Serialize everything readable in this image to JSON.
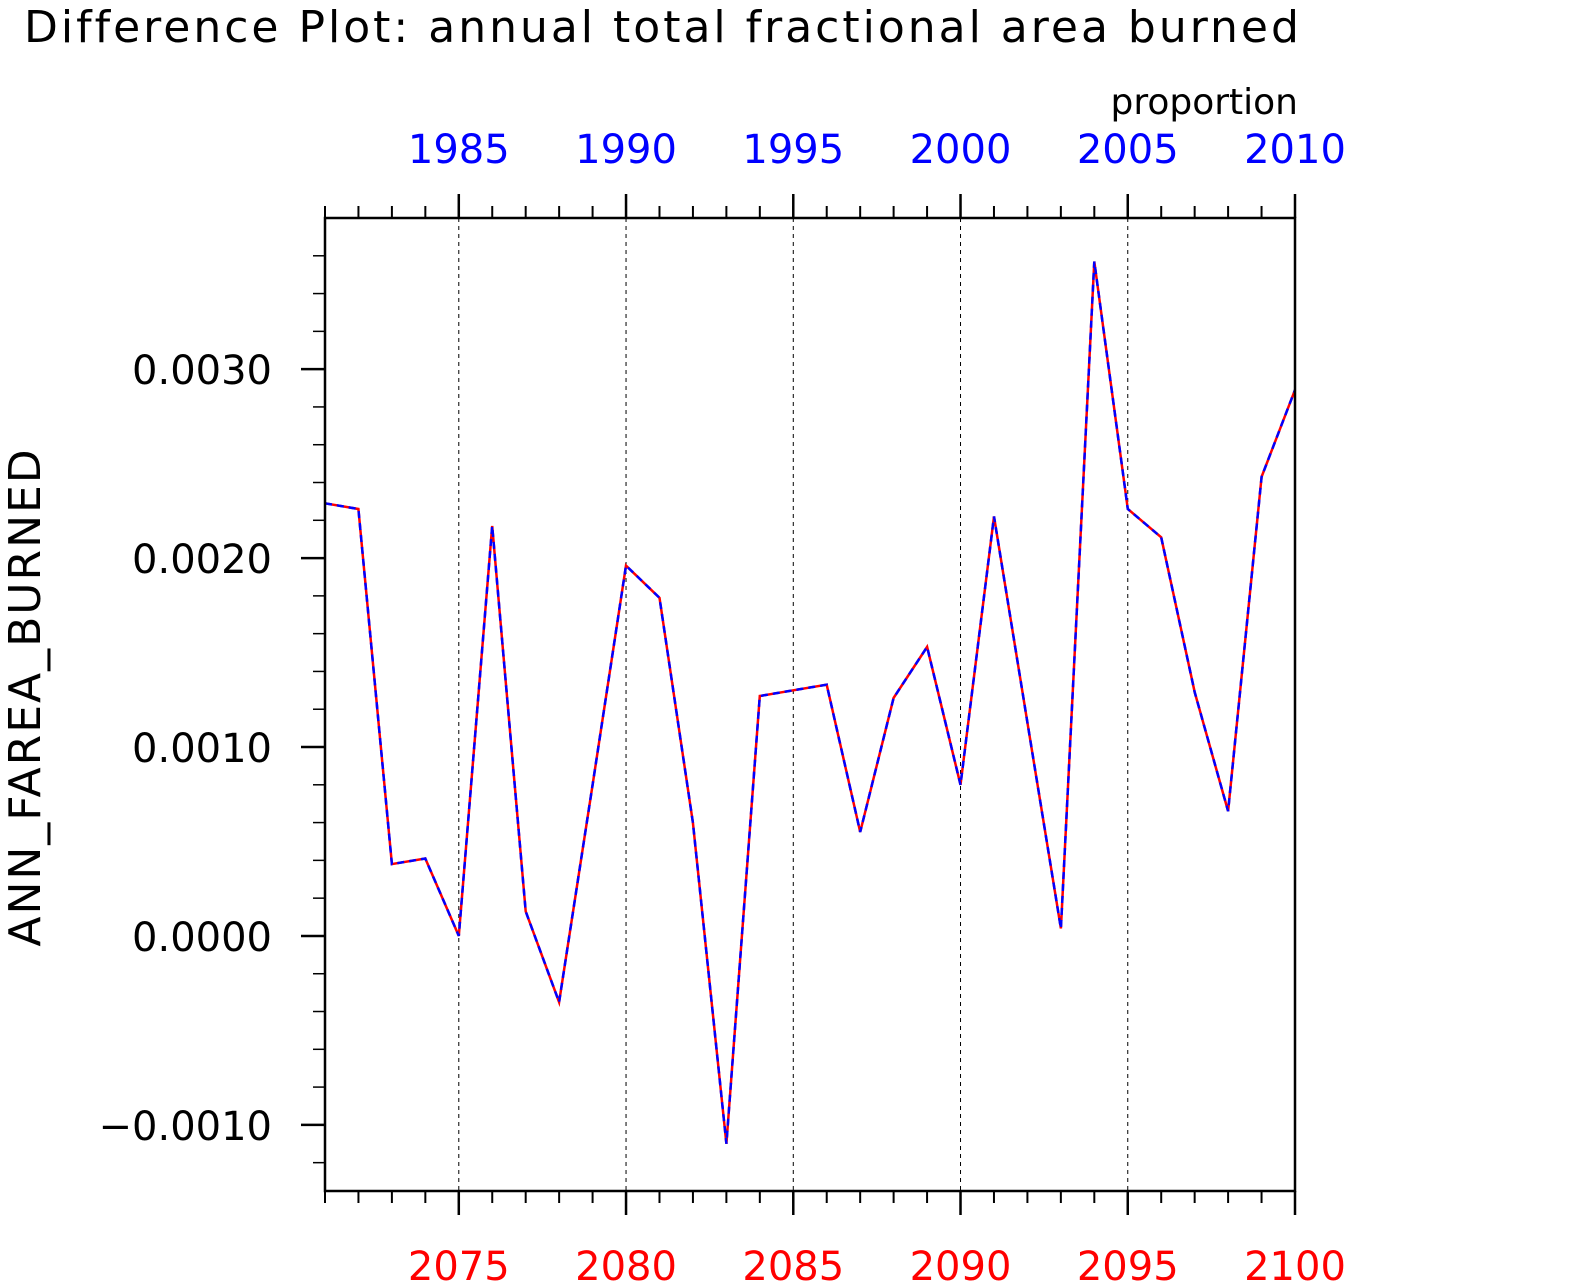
{
  "chart_data": {
    "type": "line",
    "title": "Difference Plot: annual total fractional area burned",
    "units": "proportion",
    "ylabel": "ANN_FAREA_BURNED",
    "ylim": [
      -0.00135,
      0.0038
    ],
    "yticks": [
      -0.001,
      0.0,
      0.001,
      0.002,
      0.003
    ],
    "ytick_labels": [
      "−0.0010",
      "0.0000",
      "0.0010",
      "0.0020",
      "0.0030"
    ],
    "grid": "vertical dashed",
    "bottom_axis": {
      "color": "#ff0000",
      "range": [
        2071,
        2100
      ],
      "ticks": [
        2075,
        2080,
        2085,
        2090,
        2095,
        2100
      ],
      "labels": [
        "2075",
        "2080",
        "2085",
        "2090",
        "2095",
        "2100"
      ]
    },
    "top_axis": {
      "color": "#0000ff",
      "range": [
        1981,
        2010
      ],
      "ticks": [
        1985,
        1990,
        1995,
        2000,
        2005,
        2010
      ],
      "labels": [
        "1985",
        "1990",
        "1995",
        "2000",
        "2005",
        "2010"
      ]
    },
    "x": [
      2071,
      2072,
      2073,
      2074,
      2075,
      2076,
      2077,
      2078,
      2079,
      2080,
      2081,
      2082,
      2083,
      2084,
      2085,
      2086,
      2087,
      2088,
      2089,
      2090,
      2091,
      2092,
      2093,
      2094,
      2095,
      2096,
      2097,
      2098,
      2099,
      2100
    ],
    "series": [
      {
        "color": "#ff0000",
        "style": "solid",
        "values": [
          0.00229,
          0.00226,
          0.00038,
          0.00041,
          0.0,
          0.00217,
          0.00013,
          -0.00035,
          0.0008,
          0.00196,
          0.00179,
          0.0006,
          -0.0011,
          0.00127,
          0.0013,
          0.00133,
          0.00055,
          0.00126,
          0.00153,
          0.0008,
          0.00222,
          0.00113,
          4e-05,
          0.00357,
          0.00226,
          0.00211,
          0.00129,
          0.00066,
          0.00243,
          0.00289
        ]
      },
      {
        "color": "#0000ff",
        "style": "dashed",
        "values": [
          0.00229,
          0.00226,
          0.00038,
          0.00041,
          0.0,
          0.00217,
          0.00013,
          -0.00035,
          0.0008,
          0.00196,
          0.00179,
          0.0006,
          -0.0011,
          0.00127,
          0.0013,
          0.00133,
          0.00055,
          0.00126,
          0.00153,
          0.0008,
          0.00222,
          0.00113,
          4e-05,
          0.00357,
          0.00226,
          0.00211,
          0.00129,
          0.00066,
          0.00243,
          0.00289
        ]
      }
    ]
  }
}
